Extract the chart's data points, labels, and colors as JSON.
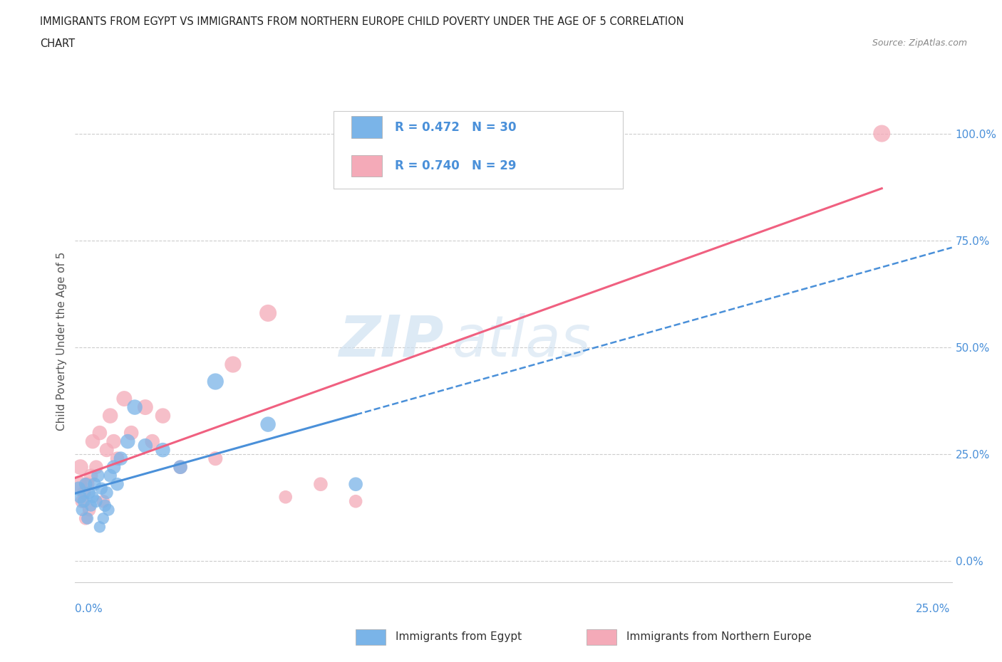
{
  "title_line1": "IMMIGRANTS FROM EGYPT VS IMMIGRANTS FROM NORTHERN EUROPE CHILD POVERTY UNDER THE AGE OF 5 CORRELATION",
  "title_line2": "CHART",
  "source": "Source: ZipAtlas.com",
  "ylabel": "Child Poverty Under the Age of 5",
  "ytick_values": [
    0,
    25,
    50,
    75,
    100
  ],
  "xmin": 0,
  "xmax": 25,
  "ymin": -5,
  "ymax": 108,
  "color_egypt": "#7ab4e8",
  "color_ne": "#f4aab8",
  "color_egypt_line": "#4a90d9",
  "color_ne_line": "#f06080",
  "color_text_blue": "#4a90d9",
  "watermark_top": "ZIP",
  "watermark_bot": "atlas",
  "egypt_x": [
    0.1,
    0.15,
    0.2,
    0.25,
    0.3,
    0.35,
    0.4,
    0.45,
    0.5,
    0.55,
    0.6,
    0.65,
    0.7,
    0.75,
    0.8,
    0.85,
    0.9,
    0.95,
    1.0,
    1.1,
    1.2,
    1.3,
    1.5,
    1.7,
    2.0,
    2.5,
    3.0,
    4.0,
    5.5,
    8.0
  ],
  "egypt_y": [
    17,
    15,
    12,
    14,
    18,
    10,
    16,
    13,
    15,
    18,
    14,
    20,
    8,
    17,
    10,
    13,
    16,
    12,
    20,
    22,
    18,
    24,
    28,
    36,
    27,
    26,
    22,
    42,
    32,
    18
  ],
  "ne_x": [
    0.1,
    0.15,
    0.2,
    0.25,
    0.3,
    0.35,
    0.4,
    0.45,
    0.5,
    0.6,
    0.7,
    0.8,
    0.9,
    1.0,
    1.1,
    1.2,
    1.4,
    1.6,
    2.0,
    2.2,
    2.5,
    3.0,
    4.0,
    4.5,
    5.5,
    6.0,
    7.0,
    8.0,
    23.0
  ],
  "ne_y": [
    18,
    22,
    14,
    16,
    10,
    18,
    12,
    20,
    28,
    22,
    30,
    14,
    26,
    34,
    28,
    24,
    38,
    30,
    36,
    28,
    34,
    22,
    24,
    46,
    58,
    15,
    18,
    14,
    100
  ],
  "egypt_size": [
    200,
    180,
    160,
    170,
    180,
    150,
    160,
    150,
    160,
    180,
    160,
    180,
    140,
    160,
    140,
    160,
    170,
    150,
    180,
    200,
    180,
    200,
    220,
    240,
    220,
    220,
    200,
    280,
    240,
    200
  ],
  "ne_size": [
    300,
    250,
    200,
    200,
    180,
    200,
    180,
    200,
    220,
    200,
    220,
    180,
    210,
    240,
    220,
    200,
    250,
    220,
    250,
    220,
    240,
    200,
    210,
    280,
    300,
    180,
    200,
    180,
    300
  ]
}
